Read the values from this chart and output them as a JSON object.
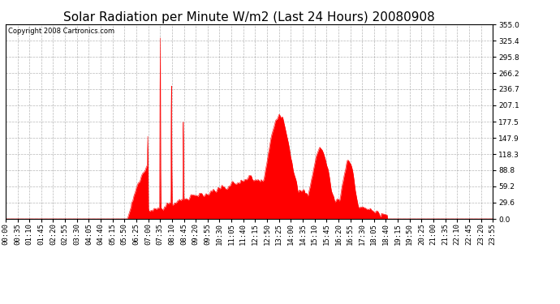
{
  "title": "Solar Radiation per Minute W/m2 (Last 24 Hours) 20080908",
  "copyright_text": "Copyright 2008 Cartronics.com",
  "y_ticks": [
    0.0,
    29.6,
    59.2,
    88.8,
    118.3,
    147.9,
    177.5,
    207.1,
    236.7,
    266.2,
    295.8,
    325.4,
    355.0
  ],
  "ymin": 0.0,
  "ymax": 355.0,
  "fill_color": "#FF0000",
  "line_color": "#FF0000",
  "dashed_line_color": "#FF0000",
  "background_color": "#FFFFFF",
  "grid_color": "#888888",
  "title_fontsize": 11,
  "tick_fontsize": 6.5,
  "x_tick_labels": [
    "00:00",
    "00:35",
    "01:10",
    "01:45",
    "02:20",
    "02:55",
    "03:30",
    "04:05",
    "04:40",
    "05:15",
    "05:50",
    "06:25",
    "07:00",
    "07:35",
    "08:10",
    "08:45",
    "09:20",
    "09:55",
    "10:30",
    "11:05",
    "11:40",
    "12:15",
    "12:50",
    "13:25",
    "14:00",
    "14:35",
    "15:10",
    "15:45",
    "16:20",
    "16:55",
    "17:30",
    "18:05",
    "18:40",
    "19:15",
    "19:50",
    "20:25",
    "21:00",
    "21:35",
    "22:10",
    "22:45",
    "23:20",
    "23:55"
  ]
}
